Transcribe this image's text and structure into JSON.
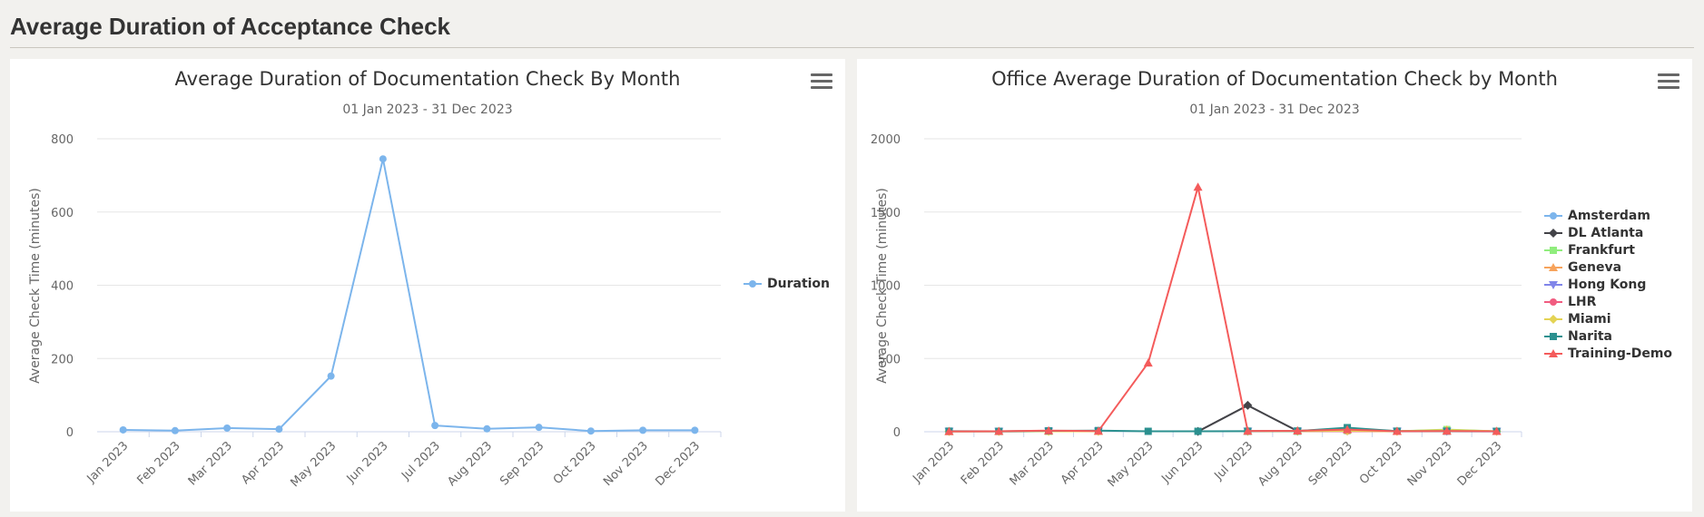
{
  "page": {
    "title": "Average Duration of Acceptance Check"
  },
  "chart_data": [
    {
      "type": "line",
      "title": "Average Duration of Documentation Check By Month",
      "subtitle": "01 Jan 2023 - 31 Dec 2023",
      "xlabel": "",
      "ylabel": "Average Check Time (minutes)",
      "categories": [
        "Jan 2023",
        "Feb 2023",
        "Mar 2023",
        "Apr 2023",
        "May 2023",
        "Jun 2023",
        "Jul 2023",
        "Aug 2023",
        "Sep 2023",
        "Oct 2023",
        "Nov 2023",
        "Dec 2023"
      ],
      "ylim": [
        0,
        800
      ],
      "yticks": [
        0,
        200,
        400,
        600,
        800
      ],
      "grid": true,
      "legend_position": "right",
      "series": [
        {
          "name": "Duration",
          "color": "#7cb5ec",
          "marker": "circle",
          "values": [
            5,
            3,
            10,
            7,
            152,
            745,
            17,
            8,
            12,
            2,
            4,
            4
          ]
        }
      ]
    },
    {
      "type": "line",
      "title": "Office Average Duration of Documentation Check by Month",
      "subtitle": "01 Jan 2023 - 31 Dec 2023",
      "xlabel": "",
      "ylabel": "Average Check Time (minutes)",
      "categories": [
        "Jan 2023",
        "Feb 2023",
        "Mar 2023",
        "Apr 2023",
        "May 2023",
        "Jun 2023",
        "Jul 2023",
        "Aug 2023",
        "Sep 2023",
        "Oct 2023",
        "Nov 2023",
        "Dec 2023"
      ],
      "ylim": [
        0,
        2000
      ],
      "yticks": [
        0,
        500,
        1000,
        1500,
        2000
      ],
      "grid": true,
      "legend_position": "right",
      "series": [
        {
          "name": "Amsterdam",
          "color": "#7cb5ec",
          "marker": "circle",
          "values": [
            3,
            2,
            4,
            5,
            null,
            null,
            4,
            3,
            5,
            2,
            3,
            2
          ]
        },
        {
          "name": "DL Atlanta",
          "color": "#434348",
          "marker": "diamond",
          "values": [
            null,
            null,
            null,
            null,
            null,
            2,
            180,
            5,
            null,
            null,
            null,
            null
          ]
        },
        {
          "name": "Frankfurt",
          "color": "#90ed7d",
          "marker": "square",
          "values": [
            2,
            2,
            3,
            3,
            null,
            null,
            3,
            4,
            8,
            3,
            15,
            3
          ]
        },
        {
          "name": "Geneva",
          "color": "#f7a35c",
          "marker": "triangle",
          "values": [
            2,
            3,
            5,
            4,
            null,
            null,
            5,
            6,
            22,
            5,
            6,
            3
          ]
        },
        {
          "name": "Hong Kong",
          "color": "#8085e9",
          "marker": "triangle-down",
          "values": [
            2,
            2,
            3,
            3,
            null,
            null,
            3,
            3,
            4,
            3,
            3,
            2
          ]
        },
        {
          "name": "LHR",
          "color": "#f15c80",
          "marker": "circle",
          "values": [
            3,
            3,
            5,
            4,
            null,
            null,
            5,
            5,
            4,
            3,
            4,
            3
          ]
        },
        {
          "name": "Miami",
          "color": "#e4d354",
          "marker": "diamond",
          "values": [
            2,
            2,
            3,
            3,
            null,
            null,
            3,
            4,
            6,
            3,
            12,
            3
          ]
        },
        {
          "name": "Narita",
          "color": "#2b908f",
          "marker": "square",
          "values": [
            4,
            3,
            6,
            8,
            3,
            3,
            4,
            5,
            28,
            4,
            4,
            3
          ]
        },
        {
          "name": "Training-Demo",
          "color": "#f45b5b",
          "marker": "triangle",
          "values": [
            2,
            3,
            8,
            5,
            470,
            1670,
            5,
            6,
            15,
            3,
            5,
            3
          ]
        }
      ]
    }
  ]
}
